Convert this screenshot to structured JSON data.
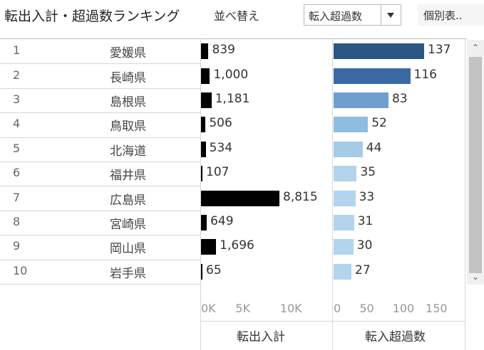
{
  "header": {
    "title": "転出入計・超過数ランキング",
    "sort_label": "並べ替え",
    "sort_dropdown_value": "転入超過数",
    "detail_button": "個別表.."
  },
  "colors": {
    "transfer_total_bar": "#000000",
    "excess_bar_gradient": [
      "#2a5783",
      "#3a6aa3",
      "#6e9fcd",
      "#8fbcdf",
      "#a5cbe7",
      "#b2d4ec"
    ]
  },
  "chart_data": {
    "type": "bar",
    "categories": [
      "愛媛県",
      "長崎県",
      "島根県",
      "鳥取県",
      "北海道",
      "福井県",
      "広島県",
      "宮崎県",
      "岡山県",
      "岩手県"
    ],
    "ranks": [
      "1",
      "2",
      "3",
      "4",
      "5",
      "6",
      "7",
      "8",
      "9",
      "10"
    ],
    "series": [
      {
        "name": "転出入計",
        "values": [
          839,
          1000,
          1181,
          506,
          534,
          107,
          8815,
          649,
          1696,
          65
        ],
        "labels": [
          "839",
          "1,000",
          "1,181",
          "506",
          "534",
          "107",
          "8,815",
          "649",
          "1,696",
          "65"
        ]
      },
      {
        "name": "転入超過数",
        "values": [
          137,
          116,
          83,
          52,
          44,
          35,
          33,
          31,
          30,
          27
        ],
        "labels": [
          "137",
          "116",
          "83",
          "52",
          "44",
          "35",
          "33",
          "31",
          "30",
          "27"
        ]
      }
    ],
    "axis1": {
      "ticks": [
        "0K",
        "5K",
        "10K"
      ],
      "tick_values": [
        0,
        5000,
        10000
      ],
      "label": "転出入計"
    },
    "axis2": {
      "ticks": [
        "0",
        "50",
        "100",
        "150"
      ],
      "tick_values": [
        0,
        50,
        100,
        150
      ],
      "label": "転入超過数"
    }
  }
}
